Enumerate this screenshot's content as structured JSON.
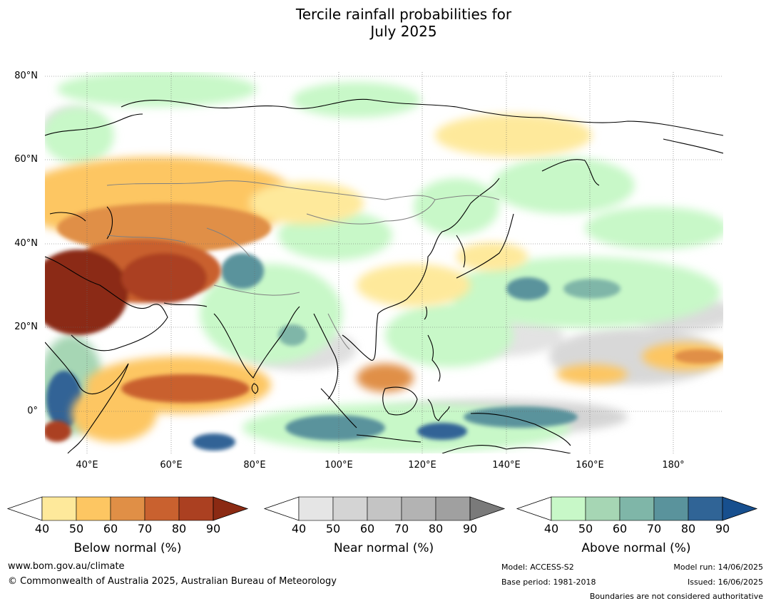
{
  "title": {
    "line1": "Tercile rainfall probabilities for",
    "line2": "July 2025"
  },
  "map": {
    "lat_labels": [
      "80°N",
      "60°N",
      "40°N",
      "20°N",
      "0°"
    ],
    "lon_labels": [
      "40°E",
      "60°E",
      "80°E",
      "100°E",
      "120°E",
      "140°E",
      "160°E",
      "180°"
    ],
    "ocean_color": "#ffffff",
    "coastline_color": "#000000",
    "boundary_color": "#808080"
  },
  "colorbars": [
    {
      "name": "below",
      "title": "Below normal (%)",
      "ticks": [
        "40",
        "50",
        "60",
        "70",
        "80",
        "90"
      ],
      "colors": [
        "#fee99b",
        "#fdc662",
        "#e08f46",
        "#c9612f",
        "#ab4021",
        "#8b2a13"
      ]
    },
    {
      "name": "near",
      "title": "Near normal (%)",
      "ticks": [
        "40",
        "50",
        "60",
        "70",
        "80",
        "90"
      ],
      "colors": [
        "#e5e5e5",
        "#d4d4d4",
        "#c4c4c4",
        "#b3b3b3",
        "#a0a0a0",
        "#7a7a7a"
      ]
    },
    {
      "name": "above",
      "title": "Above normal (%)",
      "ticks": [
        "40",
        "50",
        "60",
        "70",
        "80",
        "90"
      ],
      "colors": [
        "#c8f8c8",
        "#a6d6b4",
        "#7fb6a8",
        "#5a939c",
        "#306496",
        "#174f8e"
      ]
    }
  ],
  "footer": {
    "website": "www.bom.gov.au/climate",
    "copyright": "© Commonwealth of Australia 2025, Australian Bureau of Meteorology",
    "model": "Model: ACCESS-S2",
    "base_period": "Base period: 1981-2018",
    "model_run": "Model run: 14/06/2025",
    "issued": "Issued: 16/06/2025",
    "disclaimer": "Boundaries are not considered authoritative"
  }
}
